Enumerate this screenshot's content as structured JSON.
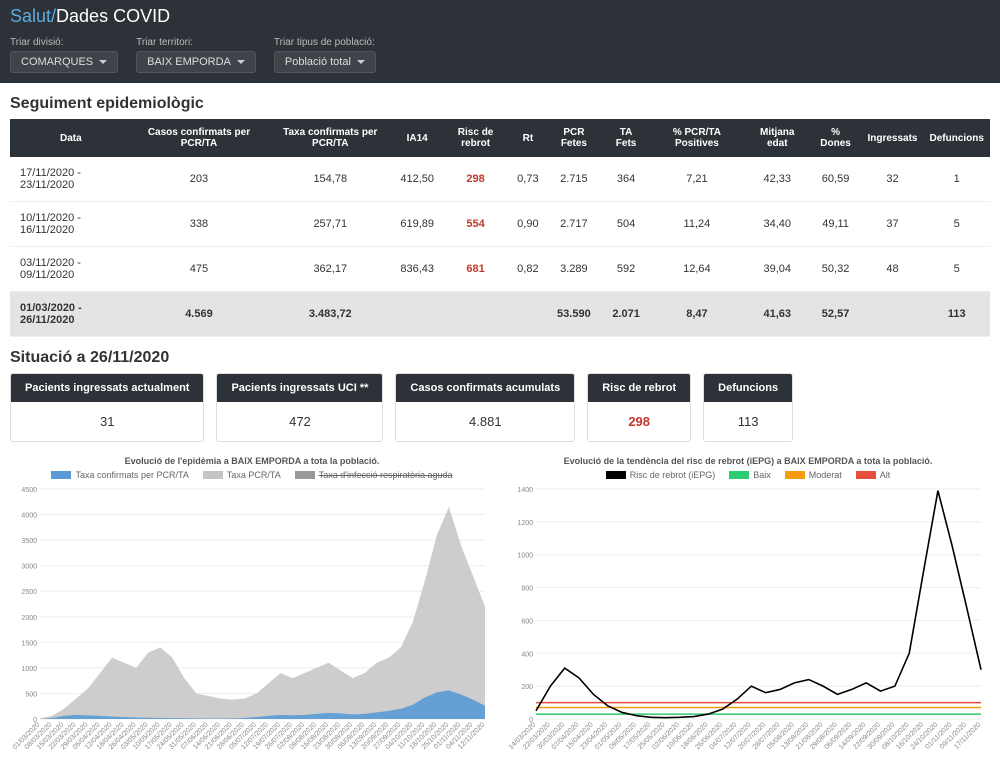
{
  "header": {
    "brand": "Salut/",
    "title": "Dades COVID"
  },
  "filters": {
    "division": {
      "label": "Triar divisió:",
      "value": "COMARQUES"
    },
    "territory": {
      "label": "Triar territori:",
      "value": "BAIX EMPORDA"
    },
    "population": {
      "label": "Triar tipus de població:",
      "value": "Població total"
    }
  },
  "tracking": {
    "title": "Seguiment epidemiològic",
    "columns": [
      "Data",
      "Casos confirmats per PCR/TA",
      "Taxa confirmats per PCR/TA",
      "IA14",
      "Risc de rebrot",
      "Rt",
      "PCR Fetes",
      "TA Fets",
      "% PCR/TA Positives",
      "Mitjana edat",
      "% Dones",
      "Ingressats",
      "Defuncions"
    ],
    "rows": [
      {
        "data": "17/11/2020 - 23/11/2020",
        "casos": "203",
        "taxa": "154,78",
        "ia14": "412,50",
        "risc": "298",
        "rt": "0,73",
        "pcr": "2.715",
        "ta": "364",
        "pos": "7,21",
        "edat": "42,33",
        "dones": "60,59",
        "ing": "32",
        "def": "1"
      },
      {
        "data": "10/11/2020 - 16/11/2020",
        "casos": "338",
        "taxa": "257,71",
        "ia14": "619,89",
        "risc": "554",
        "rt": "0,90",
        "pcr": "2.717",
        "ta": "504",
        "pos": "11,24",
        "edat": "34,40",
        "dones": "49,11",
        "ing": "37",
        "def": "5"
      },
      {
        "data": "03/11/2020 - 09/11/2020",
        "casos": "475",
        "taxa": "362,17",
        "ia14": "836,43",
        "risc": "681",
        "rt": "0,82",
        "pcr": "3.289",
        "ta": "592",
        "pos": "12,64",
        "edat": "39,04",
        "dones": "50,32",
        "ing": "48",
        "def": "5"
      }
    ],
    "total": {
      "data": "01/03/2020 - 26/11/2020",
      "casos": "4.569",
      "taxa": "3.483,72",
      "ia14": "",
      "risc": "",
      "rt": "",
      "pcr": "53.590",
      "ta": "2.071",
      "pos": "8,47",
      "edat": "41,63",
      "dones": "52,57",
      "ing": "",
      "def": "113"
    }
  },
  "situation": {
    "title": "Situació a 26/11/2020",
    "cards": [
      {
        "label": "Pacients ingressats actualment",
        "value": "31"
      },
      {
        "label": "Pacients ingressats UCI **",
        "value": "472"
      },
      {
        "label": "Casos confirmats acumulats",
        "value": "4.881"
      },
      {
        "label": "Risc de rebrot",
        "value": "298",
        "danger": true
      },
      {
        "label": "Defuncions",
        "value": "113"
      }
    ]
  },
  "chart1": {
    "title": "Evolució de l'epidèmia a BAIX EMPORDA a tota la població.",
    "legend": [
      {
        "label": "Taxa confirmats per PCR/TA",
        "color": "#5a9bd5"
      },
      {
        "label": "Taxa PCR/TA",
        "color": "#c4c4c4"
      },
      {
        "label": "Taxa d'infecció respiratòria aguda",
        "color": "#999999",
        "strike": true
      }
    ],
    "ylim": [
      0,
      4500
    ],
    "ytick_step": 500,
    "x_labels": [
      "01/03/2020",
      "08/03/2020",
      "15/03/2020",
      "22/03/2020",
      "29/03/2020",
      "05/04/2020",
      "12/04/2020",
      "18/04/2020",
      "26/04/2020",
      "03/05/2020",
      "10/05/2020",
      "17/05/2020",
      "24/05/2020",
      "31/05/2020",
      "07/06/2020",
      "14/06/2020",
      "21/06/2020",
      "28/06/2020",
      "05/07/2020",
      "12/07/2020",
      "19/07/2020",
      "26/07/2020",
      "02/08/2020",
      "09/08/2020",
      "16/08/2020",
      "23/08/2020",
      "30/08/2020",
      "06/09/2020",
      "13/09/2020",
      "20/09/2020",
      "27/09/2020",
      "04/10/2020",
      "11/10/2020",
      "18/10/2020",
      "25/10/2020",
      "01/11/2020",
      "04/11/2020",
      "12/11/2020"
    ],
    "series_gray": [
      10,
      60,
      200,
      400,
      600,
      900,
      1200,
      1100,
      1000,
      1300,
      1400,
      1200,
      800,
      500,
      450,
      400,
      380,
      400,
      500,
      700,
      900,
      800,
      900,
      1000,
      1100,
      950,
      800,
      900,
      1100,
      1200,
      1400,
      1900,
      2700,
      3600,
      4150,
      3400,
      2800,
      2200
    ],
    "series_blue": [
      2,
      20,
      60,
      80,
      70,
      60,
      50,
      40,
      30,
      25,
      20,
      18,
      15,
      12,
      10,
      10,
      12,
      20,
      40,
      60,
      80,
      70,
      80,
      100,
      120,
      110,
      90,
      100,
      130,
      160,
      200,
      280,
      420,
      520,
      560,
      480,
      380,
      260
    ]
  },
  "chart2": {
    "title": "Evolució de la tendència del risc de rebrot (iEPG) a BAIX EMPORDA a tota la població.",
    "legend": [
      {
        "label": "Risc de rebrot (iEPG)",
        "color": "#000000"
      },
      {
        "label": "Baix",
        "color": "#2ecc71"
      },
      {
        "label": "Moderat",
        "color": "#f39c12"
      },
      {
        "label": "Alt",
        "color": "#e74c3c"
      }
    ],
    "ylim": [
      0,
      1400
    ],
    "ytick_step": 200,
    "thresholds": {
      "baix": 30,
      "moderat": 70,
      "alt": 100
    },
    "x_labels": [
      "14/03/2020",
      "22/03/2020",
      "30/03/2020",
      "07/04/2020",
      "15/04/2020",
      "23/04/2020",
      "01/05/2020",
      "09/05/2020",
      "17/05/2020",
      "25/05/2020",
      "02/06/2020",
      "10/06/2020",
      "18/06/2020",
      "26/06/2020",
      "04/07/2020",
      "12/07/2020",
      "20/07/2020",
      "28/07/2020",
      "05/08/2020",
      "13/08/2020",
      "21/08/2020",
      "29/08/2020",
      "06/09/2020",
      "14/09/2020",
      "22/09/2020",
      "30/09/2020",
      "08/10/2020",
      "16/10/2020",
      "24/10/2020",
      "01/11/2020",
      "09/11/2020",
      "17/11/2020"
    ],
    "series": [
      50,
      200,
      310,
      250,
      150,
      80,
      40,
      20,
      10,
      8,
      10,
      15,
      30,
      60,
      120,
      200,
      160,
      180,
      220,
      240,
      200,
      150,
      180,
      220,
      170,
      200,
      400,
      900,
      1390,
      1050,
      680,
      300
    ]
  },
  "colors": {
    "header_bg": "#2c3237",
    "brand": "#5dade2",
    "danger": "#c0392b",
    "grid": "#eeeeee"
  }
}
